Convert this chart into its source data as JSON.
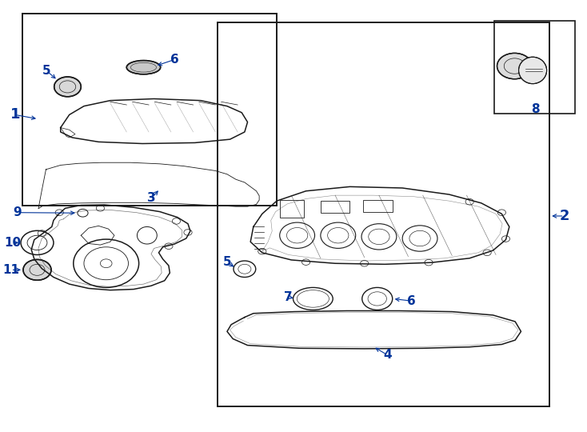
{
  "bg_color": "#ffffff",
  "line_color": "#1a1a1a",
  "label_color": "#003399",
  "label_fontsize": 11
}
